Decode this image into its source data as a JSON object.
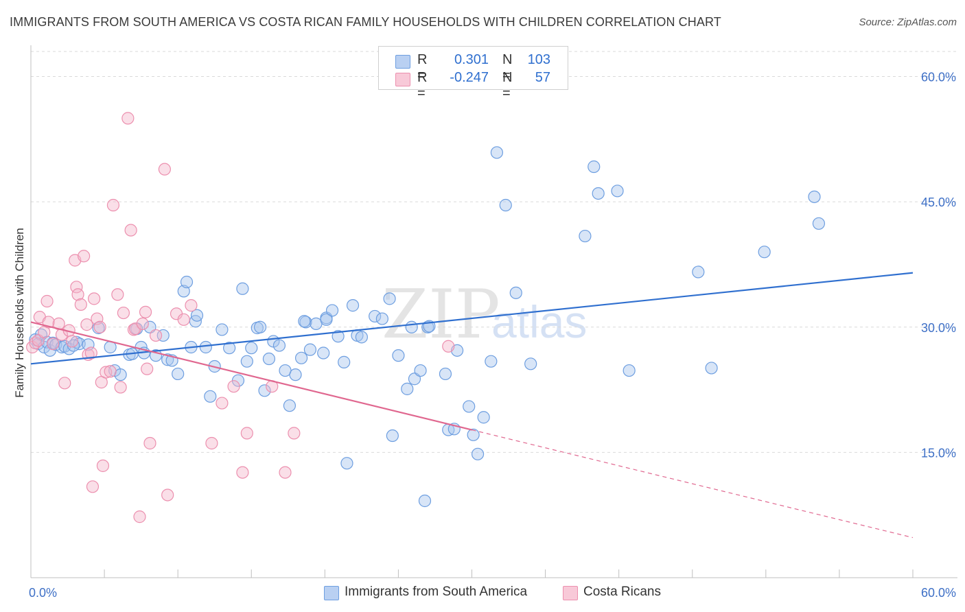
{
  "title": "IMMIGRANTS FROM SOUTH AMERICA VS COSTA RICAN FAMILY HOUSEHOLDS WITH CHILDREN CORRELATION CHART",
  "source": "Source: ZipAtlas.com",
  "watermark": {
    "zip": "ZIP",
    "atlas": "atlas"
  },
  "colors": {
    "blue_fill": "#a9c6ee",
    "blue_stroke": "#6d9ee0",
    "blue_line": "#2f6fcf",
    "pink_fill": "#f5b8cb",
    "pink_stroke": "#ec8fae",
    "pink_line": "#e0678f",
    "axis_text": "#3d6fc6",
    "grid": "#d9d9d9"
  },
  "legend": {
    "rows": [
      {
        "r_label": "R =",
        "r_value": "0.301",
        "n_label": "N =",
        "n_value": "103",
        "series": "blue"
      },
      {
        "r_label": "R =",
        "r_value": "-0.247",
        "n_label": "N =",
        "n_value": "57",
        "series": "pink"
      }
    ]
  },
  "bottom_legend": [
    "Immigrants from South America",
    "Costa Ricans"
  ],
  "chart_data": {
    "type": "scatter",
    "title": "IMMIGRANTS FROM SOUTH AMERICA VS COSTA RICAN FAMILY HOUSEHOLDS WITH CHILDREN CORRELATION CHART",
    "xlabel": "",
    "ylabel": "Family Households with Children",
    "xlim": [
      0,
      60
    ],
    "ylim": [
      0,
      63
    ],
    "x_tick_labels": [
      "0.0%",
      "60.0%"
    ],
    "y_ticks": [
      15,
      30,
      45,
      60
    ],
    "y_tick_labels": [
      "15.0%",
      "30.0%",
      "45.0%",
      "60.0%"
    ],
    "grid": true,
    "series": [
      {
        "name": "Immigrants from South America",
        "color": "blue",
        "R": 0.301,
        "N": 103,
        "trend": {
          "x0": 0,
          "y0": 25.6,
          "x1": 60,
          "y1": 36.5,
          "dashed_from": null
        },
        "points": [
          [
            0.3,
            28.5
          ],
          [
            0.5,
            28.0
          ],
          [
            0.7,
            29.1
          ],
          [
            0.9,
            27.6
          ],
          [
            1.1,
            28.2
          ],
          [
            1.3,
            27.2
          ],
          [
            1.5,
            28.1
          ],
          [
            1.7,
            27.9
          ],
          [
            2.1,
            27.6
          ],
          [
            2.3,
            27.7
          ],
          [
            2.6,
            27.4
          ],
          [
            3.1,
            28.2
          ],
          [
            3.3,
            28.0
          ],
          [
            2.9,
            27.8
          ],
          [
            3.9,
            27.9
          ],
          [
            4.6,
            29.9
          ],
          [
            5.4,
            27.6
          ],
          [
            5.7,
            24.8
          ],
          [
            6.1,
            24.3
          ],
          [
            6.7,
            26.7
          ],
          [
            6.9,
            26.8
          ],
          [
            7.2,
            29.8
          ],
          [
            7.5,
            27.6
          ],
          [
            7.7,
            26.9
          ],
          [
            8.1,
            30.0
          ],
          [
            8.5,
            26.6
          ],
          [
            9.0,
            29.0
          ],
          [
            9.3,
            26.1
          ],
          [
            9.6,
            26.0
          ],
          [
            10.0,
            24.4
          ],
          [
            10.4,
            34.3
          ],
          [
            10.6,
            35.4
          ],
          [
            10.9,
            27.6
          ],
          [
            11.2,
            30.7
          ],
          [
            11.3,
            31.4
          ],
          [
            11.9,
            27.6
          ],
          [
            12.2,
            21.7
          ],
          [
            12.5,
            25.3
          ],
          [
            13.0,
            29.7
          ],
          [
            13.5,
            27.5
          ],
          [
            14.1,
            23.6
          ],
          [
            14.4,
            34.6
          ],
          [
            14.7,
            25.9
          ],
          [
            15.0,
            27.5
          ],
          [
            15.4,
            29.9
          ],
          [
            15.9,
            22.4
          ],
          [
            16.2,
            26.2
          ],
          [
            16.5,
            28.3
          ],
          [
            16.9,
            27.8
          ],
          [
            17.3,
            24.8
          ],
          [
            17.6,
            20.6
          ],
          [
            18.0,
            24.3
          ],
          [
            18.4,
            26.3
          ],
          [
            18.7,
            30.6
          ],
          [
            19.0,
            27.3
          ],
          [
            19.4,
            30.4
          ],
          [
            19.9,
            26.9
          ],
          [
            20.1,
            31.1
          ],
          [
            20.5,
            32.0
          ],
          [
            20.9,
            28.9
          ],
          [
            21.3,
            25.8
          ],
          [
            21.9,
            32.6
          ],
          [
            22.2,
            29.0
          ],
          [
            22.5,
            28.8
          ],
          [
            23.4,
            31.3
          ],
          [
            23.9,
            31.0
          ],
          [
            24.4,
            33.4
          ],
          [
            24.6,
            17.0
          ],
          [
            25.0,
            26.6
          ],
          [
            25.6,
            22.6
          ],
          [
            25.9,
            30.0
          ],
          [
            26.1,
            23.8
          ],
          [
            26.5,
            24.8
          ],
          [
            27.0,
            30.0
          ],
          [
            26.8,
            9.2
          ],
          [
            28.2,
            24.4
          ],
          [
            28.4,
            17.7
          ],
          [
            28.8,
            17.8
          ],
          [
            29.0,
            27.2
          ],
          [
            29.8,
            20.5
          ],
          [
            30.1,
            17.1
          ],
          [
            30.4,
            14.8
          ],
          [
            30.8,
            19.2
          ],
          [
            31.3,
            25.9
          ],
          [
            31.7,
            50.9
          ],
          [
            32.3,
            44.6
          ],
          [
            33.0,
            34.1
          ],
          [
            34.0,
            25.6
          ],
          [
            37.7,
            40.9
          ],
          [
            38.3,
            49.2
          ],
          [
            38.6,
            46.0
          ],
          [
            39.9,
            46.3
          ],
          [
            40.7,
            24.8
          ],
          [
            45.4,
            36.6
          ],
          [
            46.3,
            25.1
          ],
          [
            49.9,
            39.0
          ],
          [
            53.3,
            45.6
          ],
          [
            53.6,
            42.4
          ],
          [
            18.6,
            30.7
          ],
          [
            27.1,
            30.1
          ],
          [
            20.1,
            30.9
          ],
          [
            21.5,
            13.7
          ],
          [
            15.6,
            30.0
          ]
        ]
      },
      {
        "name": "Costa Ricans",
        "color": "pink",
        "R": -0.247,
        "N": 57,
        "trend": {
          "x0": 0,
          "y0": 30.6,
          "x1": 60,
          "y1": 4.8,
          "dashed_from": 30
        },
        "points": [
          [
            0.1,
            27.6
          ],
          [
            0.3,
            28.1
          ],
          [
            0.5,
            28.4
          ],
          [
            0.6,
            31.2
          ],
          [
            0.9,
            29.4
          ],
          [
            1.1,
            33.1
          ],
          [
            1.2,
            30.6
          ],
          [
            1.5,
            28.0
          ],
          [
            1.9,
            30.4
          ],
          [
            2.1,
            29.1
          ],
          [
            2.3,
            23.3
          ],
          [
            2.6,
            29.6
          ],
          [
            2.8,
            28.3
          ],
          [
            3.0,
            38.0
          ],
          [
            3.1,
            34.8
          ],
          [
            3.2,
            33.9
          ],
          [
            3.4,
            32.7
          ],
          [
            3.6,
            38.5
          ],
          [
            3.8,
            30.3
          ],
          [
            3.9,
            26.7
          ],
          [
            4.1,
            26.9
          ],
          [
            4.2,
            10.9
          ],
          [
            4.3,
            33.4
          ],
          [
            4.5,
            31.0
          ],
          [
            4.7,
            30.0
          ],
          [
            4.8,
            23.4
          ],
          [
            4.9,
            13.4
          ],
          [
            5.1,
            24.6
          ],
          [
            5.4,
            24.7
          ],
          [
            5.6,
            44.6
          ],
          [
            5.9,
            33.9
          ],
          [
            6.1,
            22.8
          ],
          [
            6.3,
            31.7
          ],
          [
            6.6,
            55.0
          ],
          [
            6.8,
            41.6
          ],
          [
            7.0,
            29.7
          ],
          [
            7.1,
            29.8
          ],
          [
            7.4,
            7.3
          ],
          [
            7.6,
            30.4
          ],
          [
            7.8,
            31.8
          ],
          [
            7.9,
            25.0
          ],
          [
            8.1,
            16.1
          ],
          [
            8.5,
            29.0
          ],
          [
            9.1,
            48.9
          ],
          [
            9.3,
            9.9
          ],
          [
            9.9,
            31.6
          ],
          [
            10.4,
            30.9
          ],
          [
            10.9,
            32.6
          ],
          [
            12.3,
            16.1
          ],
          [
            13.0,
            20.9
          ],
          [
            13.8,
            22.9
          ],
          [
            14.4,
            12.6
          ],
          [
            14.7,
            17.3
          ],
          [
            16.4,
            22.9
          ],
          [
            17.3,
            12.6
          ],
          [
            17.9,
            17.3
          ],
          [
            28.4,
            27.7
          ]
        ]
      }
    ]
  }
}
